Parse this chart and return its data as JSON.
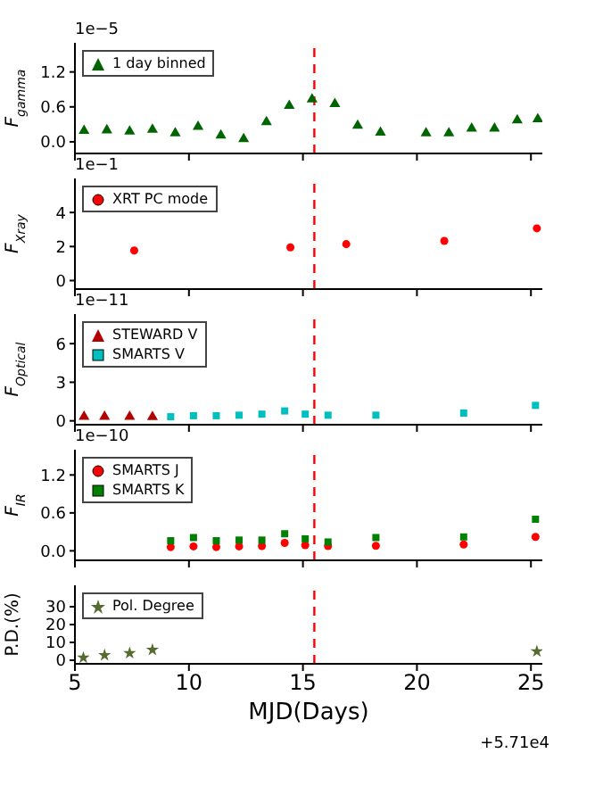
{
  "chart_data": [
    {
      "type": "scatter",
      "ylabel": "F$_{gamma}$",
      "annotations": [
        "1e−5"
      ],
      "xlim": [
        5,
        25.5
      ],
      "xticks": [
        5,
        10,
        15,
        20,
        25
      ],
      "ylim": [
        -0.2,
        1.7
      ],
      "yticks": [
        {
          "value": 0,
          "label": "0.0"
        },
        0.6,
        1.2
      ],
      "tick_labels": "y",
      "legend": "top left",
      "marker": "triangle",
      "ref_lines": [
        {
          "axis": "x",
          "value": 15.5,
          "color": "#ff0000",
          "line_style": "dashed"
        }
      ],
      "series": [
        {
          "name": "1 day binned",
          "color": "#006400",
          "x": [
            5.4,
            6.4,
            7.4,
            8.4,
            9.4,
            10.4,
            11.4,
            12.4,
            13.4,
            14.4,
            15.4,
            16.4,
            17.4,
            18.4,
            20.4,
            21.4,
            22.4,
            23.4,
            24.4,
            25.3
          ],
          "values": [
            0.19,
            0.2,
            0.18,
            0.21,
            0.15,
            0.26,
            0.11,
            0.05,
            0.34,
            0.62,
            0.73,
            0.65,
            0.28,
            0.16,
            0.15,
            0.15,
            0.23,
            0.23,
            0.37,
            0.39
          ]
        }
      ]
    },
    {
      "type": "scatter",
      "ylabel": "F$_{Xray}$",
      "annotations": [
        "1e−1"
      ],
      "xlim": [
        5,
        25.5
      ],
      "xticks": [
        5,
        10,
        15,
        20,
        25
      ],
      "ylim": [
        -0.5,
        6
      ],
      "yticks": [
        0,
        2,
        4
      ],
      "tick_labels": "y",
      "legend": "top left",
      "marker": "circle",
      "ref_lines": [
        {
          "axis": "x",
          "value": 15.5,
          "color": "#ff0000",
          "line_style": "dashed"
        }
      ],
      "series": [
        {
          "name": "XRT PC mode",
          "color": "#ff0000",
          "x": [
            7.6,
            14.45,
            16.9,
            21.2,
            25.26
          ],
          "values": [
            1.77,
            1.95,
            2.14,
            2.33,
            3.07
          ]
        }
      ]
    },
    {
      "type": "scatter",
      "ylabel": "F$_{Optical}$",
      "annotations": [
        "1e−11"
      ],
      "xlim": [
        5,
        25.5
      ],
      "xticks": [
        5,
        10,
        15,
        20,
        25
      ],
      "ylim": [
        -0.3,
        8.3
      ],
      "yticks": [
        0,
        3,
        6
      ],
      "tick_labels": "y",
      "legend": "top left",
      "ref_lines": [
        {
          "axis": "x",
          "value": 15.5,
          "color": "#ff0000",
          "line_style": "dashed"
        }
      ],
      "series": [
        {
          "name": "STEWARD V",
          "color": "#b20000",
          "marker": "triangle",
          "x": [
            5.4,
            6.3,
            7.4,
            8.4
          ],
          "values": [
            0.32,
            0.32,
            0.32,
            0.3
          ]
        },
        {
          "name": "SMARTS V",
          "color": "#00bfbf",
          "marker": "square",
          "x": [
            9.2,
            10.2,
            11.2,
            12.2,
            13.2,
            14.2,
            15.1,
            16.1,
            18.2,
            22.05,
            25.2
          ],
          "values": [
            0.32,
            0.4,
            0.4,
            0.44,
            0.52,
            0.77,
            0.52,
            0.44,
            0.44,
            0.6,
            1.2
          ]
        }
      ]
    },
    {
      "type": "scatter",
      "ylabel": "F$_{IR}$",
      "annotations": [
        "1e−10"
      ],
      "xlim": [
        5,
        25.5
      ],
      "xticks": [
        5,
        10,
        15,
        20,
        25
      ],
      "ylim": [
        -0.15,
        1.6
      ],
      "yticks": [
        {
          "value": 0,
          "label": "0.0"
        },
        0.6,
        1.2
      ],
      "tick_labels": "y",
      "legend": "top left",
      "ref_lines": [
        {
          "axis": "x",
          "value": 15.5,
          "color": "#ff0000",
          "line_style": "dashed"
        }
      ],
      "series": [
        {
          "name": "SMARTS J",
          "color": "#ff0000",
          "marker": "circle",
          "x": [
            9.2,
            10.2,
            11.2,
            12.2,
            13.2,
            14.2,
            15.1,
            16.1,
            18.2,
            22.05,
            25.2
          ],
          "values": [
            0.06,
            0.07,
            0.06,
            0.07,
            0.075,
            0.125,
            0.09,
            0.075,
            0.08,
            0.1,
            0.22
          ]
        },
        {
          "name": "SMARTS K",
          "color": "#008000",
          "marker": "square",
          "x": [
            9.2,
            10.2,
            11.2,
            12.2,
            13.2,
            14.2,
            15.1,
            16.1,
            18.2,
            22.05,
            25.2
          ],
          "values": [
            0.16,
            0.21,
            0.16,
            0.17,
            0.17,
            0.27,
            0.19,
            0.14,
            0.21,
            0.22,
            0.5
          ]
        }
      ]
    },
    {
      "type": "scatter",
      "ylabel": "P.D.(%)",
      "xlabel": "MJD(Days)",
      "annotations": [
        "+5.71e4"
      ],
      "xlim": [
        5,
        25.5
      ],
      "xticks": [
        5,
        10,
        15,
        20,
        25
      ],
      "ylim": [
        -2,
        42
      ],
      "yticks": [
        0,
        10,
        20,
        30
      ],
      "legend": "top left",
      "ref_lines": [
        {
          "axis": "x",
          "value": 15.5,
          "color": "#ff0000",
          "line_style": "dashed"
        }
      ],
      "series": [
        {
          "name": "Pol. Degree",
          "color": "#556b2f",
          "marker": "star",
          "x": [
            5.37,
            6.3,
            7.4,
            8.4,
            25.26
          ],
          "values": [
            1.4,
            2.8,
            4,
            5.8,
            5
          ]
        }
      ]
    }
  ]
}
